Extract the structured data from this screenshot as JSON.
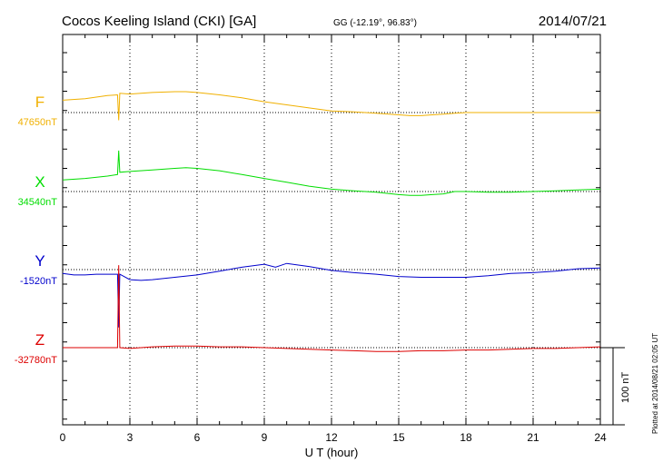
{
  "header": {
    "station": "Cocos Keeling Island (CKI)  [GA]",
    "coords": "GG (-12.19°,  96.83°)",
    "date": "2014/07/21"
  },
  "footer": {
    "xlabel": "U T (hour)",
    "plotted": "Plotted at 2014/08/21 02:05 UT",
    "scale_label": "100 nT"
  },
  "colors": {
    "F": "#f0b000",
    "X": "#00dd00",
    "Y": "#0000cc",
    "Z": "#dd0000",
    "axis": "#000000",
    "grid": "#000000"
  },
  "chart_data": {
    "type": "line",
    "x_range": [
      0,
      24
    ],
    "x_ticks": [
      0,
      3,
      6,
      9,
      12,
      15,
      18,
      21,
      24
    ],
    "x_tick_labels": [
      "0",
      "3",
      "6",
      "9",
      "12",
      "15",
      "18",
      "21",
      "24"
    ],
    "grid": true,
    "scale_bar_nT": 100,
    "series": [
      {
        "name": "F",
        "baseline_label": "47650nT",
        "baseline_nT": 47650,
        "x": [
          0,
          1,
          2,
          2.45,
          2.5,
          2.55,
          3,
          4,
          5,
          5.5,
          6,
          7,
          8,
          9,
          10,
          11,
          12,
          13,
          14,
          15,
          15.5,
          16,
          16.5,
          17,
          17.5,
          18,
          19,
          20,
          21,
          22,
          23,
          24
        ],
        "y": [
          47666,
          47668,
          47672,
          47673,
          47640,
          47675,
          47674,
          47676,
          47677,
          47677,
          47676,
          47673,
          47669,
          47664,
          47660,
          47656,
          47652,
          47651,
          47649,
          47647,
          47646,
          47646,
          47647,
          47648,
          47649,
          47650,
          47650,
          47650,
          47650,
          47650,
          47650,
          47650
        ]
      },
      {
        "name": "X",
        "baseline_label": "34540nT",
        "baseline_nT": 34540,
        "x": [
          0,
          1,
          2,
          2.45,
          2.5,
          2.55,
          3,
          4,
          5,
          5.5,
          6,
          7,
          8,
          9,
          10,
          11,
          12,
          13,
          14,
          15,
          15.5,
          16,
          16.5,
          17,
          17.5,
          18,
          19,
          20,
          21,
          22,
          23,
          24
        ],
        "y": [
          34555,
          34557,
          34560,
          34562,
          34593,
          34565,
          34566,
          34568,
          34570,
          34571,
          34570,
          34567,
          34562,
          34557,
          34552,
          34547,
          34543,
          34541,
          34539,
          34536,
          34535,
          34535,
          34536,
          34537,
          34540,
          34540,
          34539,
          34539,
          34540,
          34541,
          34542,
          34543
        ]
      },
      {
        "name": "Y",
        "baseline_label": "-1520nT",
        "baseline_nT": -1520,
        "x": [
          0,
          0.5,
          1,
          1.5,
          2,
          2.45,
          2.5,
          2.55,
          3,
          3.5,
          4,
          5,
          6,
          7,
          8,
          9,
          9.5,
          10,
          11,
          12,
          13,
          14,
          15,
          16,
          17,
          18,
          19,
          20,
          21,
          22,
          23,
          24
        ],
        "y": [
          -1525,
          -1527,
          -1527,
          -1526,
          -1526,
          -1526,
          -1595,
          -1526,
          -1533,
          -1534,
          -1533,
          -1530,
          -1527,
          -1522,
          -1517,
          -1513,
          -1517,
          -1512,
          -1516,
          -1521,
          -1524,
          -1526,
          -1529,
          -1530,
          -1530,
          -1530,
          -1528,
          -1525,
          -1524,
          -1522,
          -1519,
          -1518
        ]
      },
      {
        "name": "Z",
        "baseline_label": "-32780nT",
        "baseline_nT": -32780,
        "x": [
          0,
          1,
          2,
          2.45,
          2.5,
          2.55,
          3,
          4,
          5,
          6,
          7,
          8,
          9,
          10,
          11,
          12,
          13,
          14,
          15,
          16,
          17,
          18,
          19,
          20,
          21,
          22,
          23,
          24
        ],
        "y": [
          -32780,
          -32780,
          -32780,
          -32780,
          -32673,
          -32780,
          -32781,
          -32779,
          -32778,
          -32778,
          -32779,
          -32779,
          -32780,
          -32781,
          -32782,
          -32783,
          -32784,
          -32785,
          -32785,
          -32784,
          -32784,
          -32783,
          -32783,
          -32782,
          -32781,
          -32781,
          -32780,
          -32779
        ]
      }
    ]
  }
}
